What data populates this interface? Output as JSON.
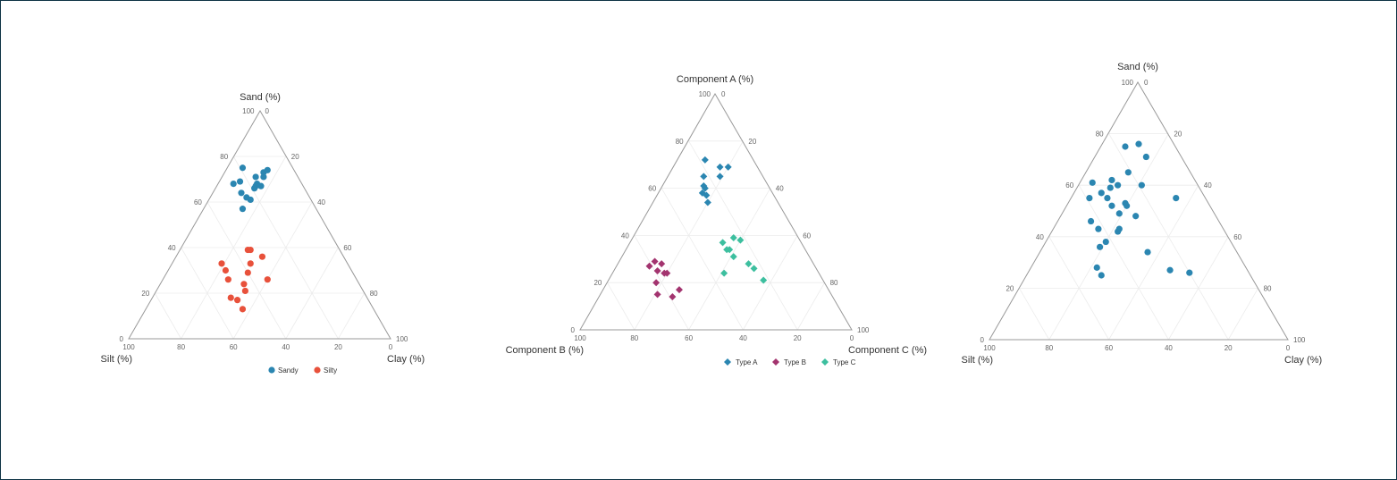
{
  "chart_data": [
    {
      "type": "ternary-scatter",
      "axes": {
        "top": "Sand (%)",
        "left": "Silt (%)",
        "right": "Clay (%)"
      },
      "ticks": [
        0,
        20,
        40,
        60,
        80,
        100
      ],
      "grid": true,
      "legend": "bottom",
      "marker": "circle",
      "point_order": [
        "top",
        "left",
        "right"
      ],
      "series": [
        {
          "name": "Sandy",
          "color": "#2b86b1",
          "points": [
            [
              75,
              19,
              6
            ],
            [
              71,
              16,
              13
            ],
            [
              73,
              12,
              15
            ],
            [
              74,
              10,
              16
            ],
            [
              71,
              13,
              16
            ],
            [
              68,
              26,
              6
            ],
            [
              69,
              23,
              8
            ],
            [
              68,
              17,
              15
            ],
            [
              67,
              16,
              17
            ],
            [
              66,
              19,
              15
            ],
            [
              64,
              25,
              11
            ],
            [
              62,
              24,
              14
            ],
            [
              61,
              23,
              16
            ],
            [
              57,
              28,
              15
            ],
            [
              67,
              18,
              15
            ]
          ]
        },
        {
          "name": "Silty",
          "color": "#e8513b",
          "points": [
            [
              39,
              35,
              26
            ],
            [
              39,
              34,
              27
            ],
            [
              36,
              31,
              33
            ],
            [
              33,
              48,
              19
            ],
            [
              33,
              37,
              30
            ],
            [
              30,
              48,
              22
            ],
            [
              29,
              40,
              31
            ],
            [
              26,
              49,
              25
            ],
            [
              26,
              34,
              40
            ],
            [
              24,
              44,
              32
            ],
            [
              21,
              45,
              34
            ],
            [
              18,
              52,
              30
            ],
            [
              17,
              50,
              33
            ],
            [
              13,
              50,
              37
            ]
          ]
        }
      ]
    },
    {
      "type": "ternary-scatter",
      "axes": {
        "top": "Component A (%)",
        "left": "Component B (%)",
        "right": "Component C (%)"
      },
      "ticks": [
        0,
        20,
        40,
        60,
        80,
        100
      ],
      "grid": true,
      "legend": "bottom",
      "marker": "diamond",
      "point_order": [
        "top",
        "left",
        "right"
      ],
      "series": [
        {
          "name": "Type A",
          "color": "#2b86b1",
          "points": [
            [
              72,
              18,
              10
            ],
            [
              69,
              14,
              17
            ],
            [
              69,
              11,
              20
            ],
            [
              65,
              22,
              13
            ],
            [
              65,
              16,
              19
            ],
            [
              61,
              24,
              15
            ],
            [
              60,
              24,
              16
            ],
            [
              58,
              26,
              16
            ],
            [
              57,
              25,
              18
            ],
            [
              54,
              26,
              20
            ]
          ]
        },
        {
          "name": "Type B",
          "color": "#a3346f",
          "points": [
            [
              29,
              58,
              13
            ],
            [
              27,
              61,
              12
            ],
            [
              28,
              56,
              16
            ],
            [
              25,
              59,
              16
            ],
            [
              24,
              57,
              19
            ],
            [
              24,
              56,
              20
            ],
            [
              20,
              62,
              18
            ],
            [
              17,
              55,
              28
            ],
            [
              15,
              64,
              21
            ],
            [
              14,
              59,
              27
            ]
          ]
        },
        {
          "name": "Type C",
          "color": "#3dbf9f",
          "points": [
            [
              39,
              24,
              37
            ],
            [
              38,
              22,
              40
            ],
            [
              37,
              29,
              34
            ],
            [
              34,
              28,
              38
            ],
            [
              34,
              29,
              37
            ],
            [
              31,
              28,
              41
            ],
            [
              28,
              24,
              48
            ],
            [
              26,
              23,
              51
            ],
            [
              24,
              35,
              41
            ],
            [
              21,
              22,
              57
            ]
          ]
        }
      ]
    },
    {
      "type": "ternary-scatter",
      "axes": {
        "top": "Sand (%)",
        "left": "Silt (%)",
        "right": "Clay (%)"
      },
      "ticks": [
        0,
        20,
        40,
        60,
        80,
        100
      ],
      "grid": true,
      "legend": "none",
      "marker": "circle",
      "point_order": [
        "top",
        "left",
        "right"
      ],
      "series": [
        {
          "color": "#2b86b1",
          "points": [
            [
              75,
              17,
              8
            ],
            [
              76,
              12,
              12
            ],
            [
              71,
              12,
              17
            ],
            [
              65,
              21,
              14
            ],
            [
              61,
              35,
              4
            ],
            [
              62,
              28,
              10
            ],
            [
              59,
              30,
              11
            ],
            [
              60,
              27,
              13
            ],
            [
              60,
              19,
              21
            ],
            [
              57,
              34,
              9
            ],
            [
              55,
              39,
              6
            ],
            [
              55,
              33,
              12
            ],
            [
              55,
              10,
              35
            ],
            [
              52,
              33,
              15
            ],
            [
              53,
              28,
              19
            ],
            [
              52,
              28,
              20
            ],
            [
              49,
              32,
              19
            ],
            [
              48,
              27,
              25
            ],
            [
              46,
              43,
              11
            ],
            [
              43,
              42,
              15
            ],
            [
              43,
              35,
              22
            ],
            [
              42,
              36,
              22
            ],
            [
              38,
              42,
              20
            ],
            [
              36,
              45,
              19
            ],
            [
              34,
              30,
              36
            ],
            [
              28,
              50,
              22
            ],
            [
              25,
              50,
              25
            ],
            [
              27,
              26,
              47
            ],
            [
              26,
              20,
              54
            ]
          ]
        }
      ]
    }
  ]
}
